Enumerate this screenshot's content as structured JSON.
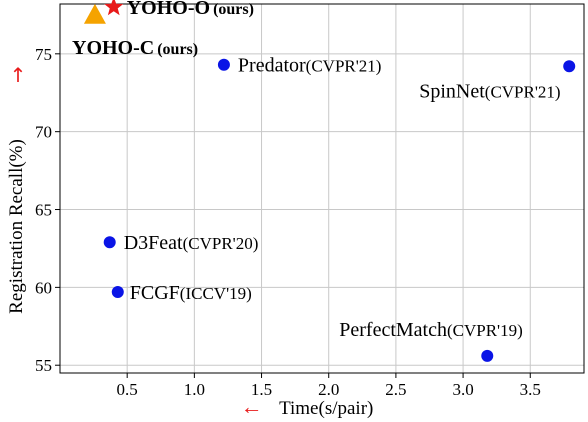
{
  "chart_data": {
    "type": "scatter",
    "xlabel": "Time(s/pair)",
    "ylabel": "Registration Recall(%)",
    "x_arrow": "←",
    "y_arrow": "↑",
    "xlim": [
      0.0,
      3.9
    ],
    "ylim": [
      54.5,
      78.2
    ],
    "xticks": [
      "0.5",
      "1.0",
      "1.5",
      "2.0",
      "2.5",
      "3.0",
      "3.5"
    ],
    "xtick_values": [
      0.5,
      1.0,
      1.5,
      2.0,
      2.5,
      3.0,
      3.5
    ],
    "yticks": [
      "55",
      "60",
      "65",
      "70",
      "75"
    ],
    "ytick_values": [
      55,
      60,
      65,
      70,
      75
    ],
    "grid": true,
    "colors": {
      "baseline": "#0a14e6",
      "ours_star": "#e81a1a",
      "ours_triangle": "#f5a300",
      "arrow": "#e81a1a",
      "grid": "#c8c8c8"
    },
    "baselines": [
      {
        "name": "Predator",
        "venue": "(CVPR'21)",
        "x": 1.22,
        "y": 74.3
      },
      {
        "name": "SpinNet",
        "venue": "(CVPR'21)",
        "x": 3.79,
        "y": 74.2
      },
      {
        "name": "D3Feat",
        "venue": "(CVPR'20)",
        "x": 0.37,
        "y": 62.9
      },
      {
        "name": "FCGF",
        "venue": "(ICCV'19)",
        "x": 0.43,
        "y": 59.7
      },
      {
        "name": "PerfectMatch",
        "venue": "(CVPR'19)",
        "x": 3.18,
        "y": 55.6
      }
    ],
    "ours": [
      {
        "name": "YOHO-O",
        "venue": "(ours)",
        "x": 0.4,
        "y": 78.0,
        "marker": "star"
      },
      {
        "name": "YOHO-C",
        "venue": "(ours)",
        "x": 0.26,
        "y": 77.5,
        "marker": "triangle"
      }
    ]
  }
}
